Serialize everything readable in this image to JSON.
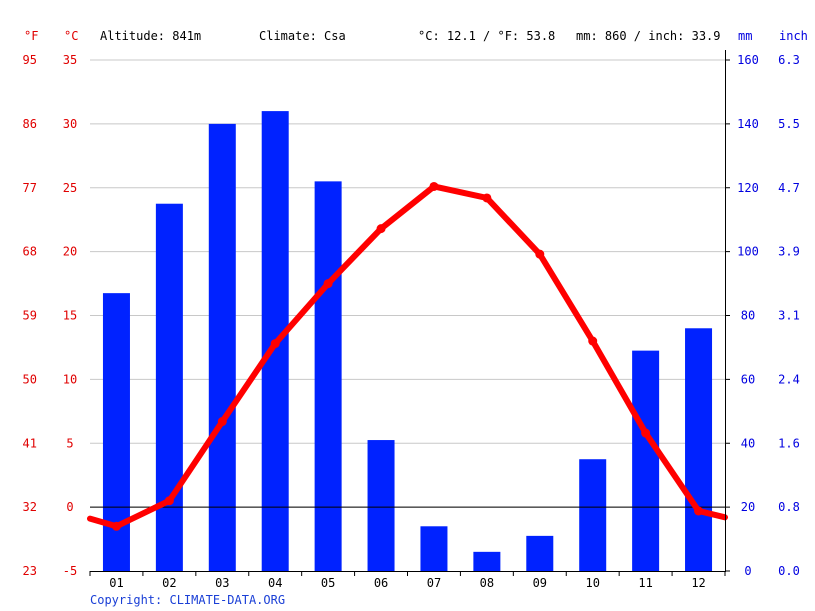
{
  "header": {
    "unit_f": "°F",
    "unit_c": "°C",
    "altitude": "Altitude: 841m",
    "climate": "Climate: Csa",
    "avg_temp": "°C: 12.1 / °F: 53.8",
    "precip": "mm: 860 / inch: 33.9",
    "unit_mm": "mm",
    "unit_inch": "inch"
  },
  "footer": {
    "copyright": "Copyright: CLIMATE-DATA.ORG"
  },
  "colors": {
    "temp_line": "#ff0000",
    "precip_bar": "#0022ff",
    "temp_axis": "#e00000",
    "precip_axis": "#0000e0",
    "grid": "#c8c8c8"
  },
  "chart_data": {
    "type": "bar",
    "categories": [
      "01",
      "02",
      "03",
      "04",
      "05",
      "06",
      "07",
      "08",
      "09",
      "10",
      "11",
      "12"
    ],
    "series": [
      {
        "type": "bar",
        "axis": "mm",
        "values": [
          87,
          115,
          140,
          144,
          122,
          41,
          14,
          6,
          11,
          35,
          69,
          76
        ]
      },
      {
        "type": "line",
        "axis": "°C",
        "values": [
          -1.5,
          0.5,
          6.7,
          12.8,
          17.5,
          21.8,
          25.1,
          24.2,
          19.8,
          13.0,
          5.8,
          -0.3
        ]
      }
    ],
    "left_axis_c": {
      "ticks": [
        -5,
        0,
        5,
        10,
        15,
        20,
        25,
        30,
        35
      ],
      "range": [
        -5,
        35
      ]
    },
    "left_axis_f": {
      "ticks": [
        23,
        32,
        41,
        50,
        59,
        68,
        77,
        86,
        95
      ]
    },
    "right_axis_mm": {
      "ticks": [
        0,
        20,
        40,
        60,
        80,
        100,
        120,
        140,
        160
      ],
      "range": [
        0,
        160
      ]
    },
    "right_axis_inch": {
      "ticks": [
        "0.0",
        "0.8",
        "1.6",
        "2.4",
        "3.1",
        "3.9",
        "4.7",
        "5.5",
        "6.3"
      ]
    },
    "line_edge_values": {
      "start": -0.9,
      "end": -0.8
    },
    "grid": true
  }
}
